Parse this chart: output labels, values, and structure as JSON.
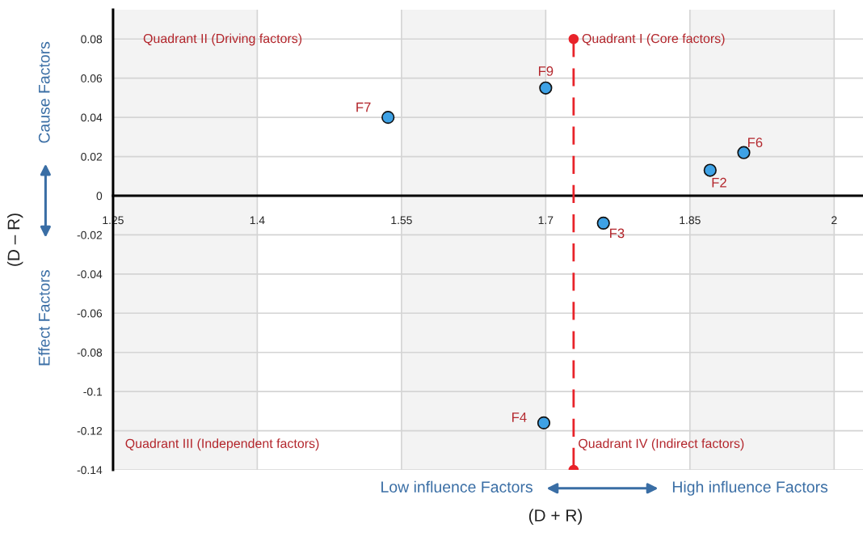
{
  "chart_data": {
    "type": "scatter",
    "xlabel": "(D + R)",
    "ylabel": "(D – R)",
    "xlim": [
      1.25,
      2.03
    ],
    "ylim": [
      -0.14,
      0.095
    ],
    "xticks": [
      1.25,
      1.4,
      1.55,
      1.7,
      1.85,
      2
    ],
    "yticks": [
      0.08,
      0.06,
      0.04,
      0.02,
      0,
      -0.02,
      -0.04,
      -0.06,
      -0.08,
      -0.1,
      -0.12,
      -0.14
    ],
    "grid": true,
    "marker": "circle",
    "bands": [
      {
        "axis": "x",
        "from": 1.25,
        "to": 1.4,
        "color": "#f3f3f3"
      },
      {
        "axis": "x",
        "from": 1.55,
        "to": 1.7,
        "color": "#f3f3f3"
      },
      {
        "axis": "x",
        "from": 1.85,
        "to": 2,
        "color": "#f3f3f3"
      }
    ],
    "series": [
      {
        "name": "F7",
        "color": "#3ea2e6",
        "x": [
          1.536
        ],
        "values": [
          0.04
        ]
      },
      {
        "name": "F9",
        "color": "#3ea2e6",
        "x": [
          1.7
        ],
        "values": [
          0.055
        ]
      },
      {
        "name": "F6",
        "color": "#3ea2e6",
        "x": [
          1.906
        ],
        "values": [
          0.022
        ]
      },
      {
        "name": "F2",
        "color": "#3ea2e6",
        "x": [
          1.871
        ],
        "values": [
          0.013
        ]
      },
      {
        "name": "F3",
        "color": "#3ea2e6",
        "x": [
          1.76
        ],
        "values": [
          -0.014
        ]
      },
      {
        "name": "F4",
        "color": "#3ea2e6",
        "x": [
          1.698
        ],
        "values": [
          -0.116
        ]
      },
      {
        "type": "line",
        "color": "#e8232a",
        "x": [
          1.729,
          1.729
        ],
        "values": [
          0.08,
          -0.14
        ],
        "line_style": "dashed"
      }
    ],
    "annotations": [
      "Quadrant II (Driving factors)",
      "Quadrant I (Core factors)",
      "Quadrant III (Independent factors)",
      "Quadrant IV (Indirect factors)",
      "Cause Factors",
      "Effect Factors",
      "Low influence Factors",
      "High influence Factors"
    ]
  }
}
